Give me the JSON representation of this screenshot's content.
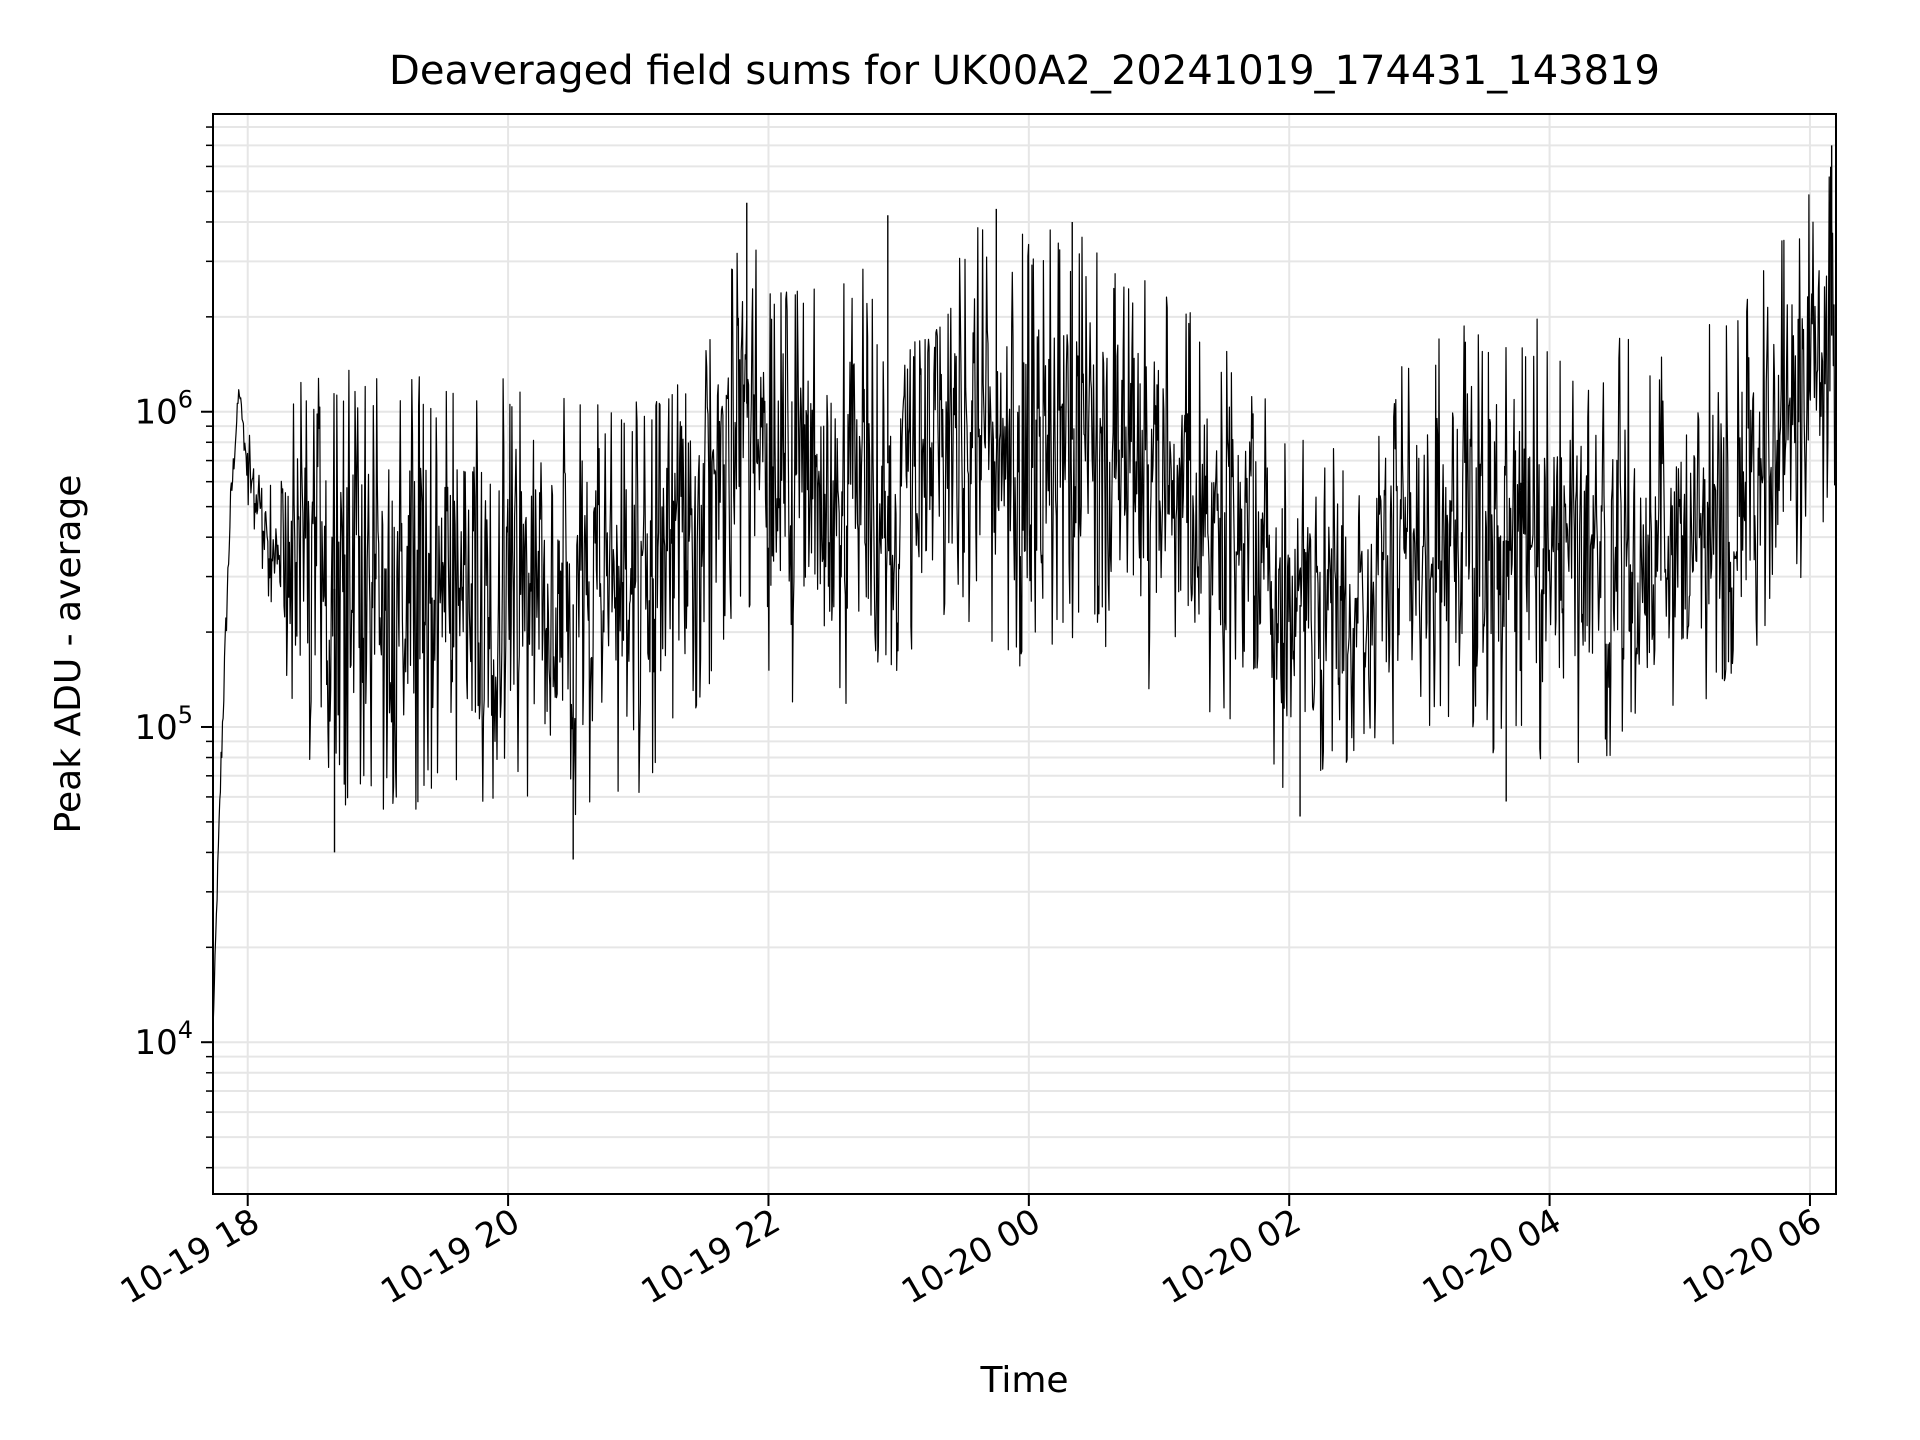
{
  "chart_data": {
    "type": "line",
    "title": "Deaveraged field sums for UK00A2_20241019_174431_143819",
    "xlabel": "Time",
    "ylabel": "Peak ADU - average",
    "y_scale": "log",
    "ylim": [
      3300,
      8800000
    ],
    "xlim": [
      "2024-10-19 17:44",
      "2024-10-20 06:12"
    ],
    "grid": true,
    "line_color": "#000000",
    "grid_color": "#e6e6e6",
    "x_ticks": [
      {
        "value": "2024-10-19 18:00",
        "label": "10-19 18"
      },
      {
        "value": "2024-10-19 20:00",
        "label": "10-19 20"
      },
      {
        "value": "2024-10-19 22:00",
        "label": "10-19 22"
      },
      {
        "value": "2024-10-20 00:00",
        "label": "10-20 00"
      },
      {
        "value": "2024-10-20 02:00",
        "label": "10-20 02"
      },
      {
        "value": "2024-10-20 04:00",
        "label": "10-20 04"
      },
      {
        "value": "2024-10-20 06:00",
        "label": "10-20 06"
      }
    ],
    "y_ticks": [
      {
        "value": 10000,
        "base": "10",
        "exp": "4"
      },
      {
        "value": 100000,
        "base": "10",
        "exp": "5"
      },
      {
        "value": 1000000,
        "base": "10",
        "exp": "6"
      }
    ],
    "series": [
      {
        "name": "",
        "envelope": [
          {
            "x": "2024-10-19 17:44",
            "low": 10000,
            "high": 12000
          },
          {
            "x": "2024-10-19 17:46",
            "low": 25000,
            "high": 40000
          },
          {
            "x": "2024-10-19 17:48",
            "low": 50000,
            "high": 150000
          },
          {
            "x": "2024-10-19 17:52",
            "low": 300000,
            "high": 800000
          },
          {
            "x": "2024-10-19 17:56",
            "low": 1000000,
            "high": 1400000
          },
          {
            "x": "2024-10-19 18:00",
            "low": 500000,
            "high": 900000
          },
          {
            "x": "2024-10-19 18:10",
            "low": 250000,
            "high": 600000
          },
          {
            "x": "2024-10-19 18:20",
            "low": 120000,
            "high": 1200000
          },
          {
            "x": "2024-10-19 18:30",
            "low": 60000,
            "high": 1300000
          },
          {
            "x": "2024-10-19 19:00",
            "low": 50000,
            "high": 1400000
          },
          {
            "x": "2024-10-19 19:30",
            "low": 55000,
            "high": 1300000
          },
          {
            "x": "2024-10-19 20:00",
            "low": 60000,
            "high": 1300000
          },
          {
            "x": "2024-10-19 20:30",
            "low": 50000,
            "high": 1200000
          },
          {
            "x": "2024-10-19 21:00",
            "low": 60000,
            "high": 1100000
          },
          {
            "x": "2024-10-19 21:30",
            "low": 120000,
            "high": 1600000
          },
          {
            "x": "2024-10-19 21:50",
            "low": 250000,
            "high": 4500000
          },
          {
            "x": "2024-10-19 22:00",
            "low": 120000,
            "high": 2400000
          },
          {
            "x": "2024-10-19 22:30",
            "low": 110000,
            "high": 2500000
          },
          {
            "x": "2024-10-19 23:00",
            "low": 150000,
            "high": 3500000
          },
          {
            "x": "2024-10-19 23:30",
            "low": 200000,
            "high": 3800000
          },
          {
            "x": "2024-10-20 00:00",
            "low": 150000,
            "high": 4000000
          },
          {
            "x": "2024-10-20 00:30",
            "low": 200000,
            "high": 3500000
          },
          {
            "x": "2024-10-20 01:00",
            "low": 110000,
            "high": 2800000
          },
          {
            "x": "2024-10-20 01:30",
            "low": 110000,
            "high": 1600000
          },
          {
            "x": "2024-10-20 02:00",
            "low": 60000,
            "high": 1000000
          },
          {
            "x": "2024-10-20 02:30",
            "low": 80000,
            "high": 700000
          },
          {
            "x": "2024-10-20 03:00",
            "low": 90000,
            "high": 1800000
          },
          {
            "x": "2024-10-20 03:30",
            "low": 80000,
            "high": 2000000
          },
          {
            "x": "2024-10-20 04:00",
            "low": 70000,
            "high": 2000000
          },
          {
            "x": "2024-10-20 04:30",
            "low": 80000,
            "high": 1800000
          },
          {
            "x": "2024-10-20 05:00",
            "low": 100000,
            "high": 1500000
          },
          {
            "x": "2024-10-20 05:30",
            "low": 150000,
            "high": 2500000
          },
          {
            "x": "2024-10-20 06:00",
            "low": 300000,
            "high": 5000000
          },
          {
            "x": "2024-10-20 06:12",
            "low": 500000,
            "high": 7000000
          }
        ],
        "peaks": [
          {
            "x": "2024-10-19 21:50",
            "value": 4600000
          },
          {
            "x": "2024-10-19 22:55",
            "value": 4200000
          },
          {
            "x": "2024-10-19 23:45",
            "value": 4400000
          },
          {
            "x": "2024-10-20 00:20",
            "value": 4000000
          },
          {
            "x": "2024-10-20 06:10",
            "value": 7000000
          }
        ],
        "troughs": [
          {
            "x": "2024-10-19 18:40",
            "value": 40000
          },
          {
            "x": "2024-10-19 20:30",
            "value": 38000
          },
          {
            "x": "2024-10-20 02:05",
            "value": 52000
          },
          {
            "x": "2024-10-20 03:40",
            "value": 58000
          }
        ]
      }
    ]
  }
}
